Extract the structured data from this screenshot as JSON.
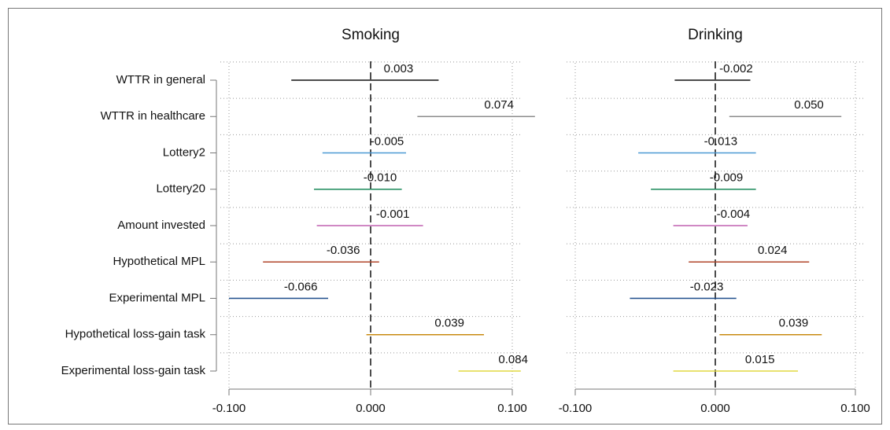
{
  "chart_data": {
    "type": "interval",
    "categories": [
      "WTTR in general",
      "WTTR in healthcare",
      "Lottery2",
      "Lottery20",
      "Amount invested",
      "Hypothetical MPL",
      "Experimental MPL",
      "Hypothetical loss-gain task",
      "Experimental loss-gain task"
    ],
    "colors": [
      "#111111",
      "#8c8c8c",
      "#4a9ad4",
      "#1a8a5a",
      "#c060b0",
      "#b0452a",
      "#1f4e8c",
      "#c88a10",
      "#e0d840"
    ],
    "xlim": [
      -0.1,
      0.1
    ],
    "xticks": [
      {
        "value": -0.1,
        "label": "-0.100"
      },
      {
        "value": 0,
        "label": "0.000"
      },
      {
        "value": 0.1,
        "label": "0.100"
      }
    ],
    "grid": true,
    "panels": [
      {
        "title": "Smoking",
        "values": [
          0.003,
          0.074,
          -0.005,
          -0.01,
          -0.001,
          -0.036,
          -0.066,
          0.039,
          0.084
        ],
        "value_labels": [
          "0.003",
          "0.074",
          "-0.005",
          "-0.010",
          "-0.001",
          "-0.036",
          "-0.066",
          "0.039",
          "0.084"
        ],
        "lower": [
          -0.056,
          0.033,
          -0.034,
          -0.04,
          -0.038,
          -0.076,
          -0.1,
          -0.003,
          0.062
        ],
        "upper": [
          0.048,
          0.116,
          0.025,
          0.022,
          0.037,
          0.006,
          -0.03,
          0.08,
          0.106
        ]
      },
      {
        "title": "Drinking",
        "values": [
          -0.002,
          0.05,
          -0.013,
          -0.009,
          -0.004,
          0.024,
          -0.023,
          0.039,
          0.015
        ],
        "value_labels": [
          "-0.002",
          "0.050",
          "-0.013",
          "-0.009",
          "-0.004",
          "0.024",
          "-0.023",
          "0.039",
          "0.015"
        ],
        "lower": [
          -0.029,
          0.01,
          -0.055,
          -0.046,
          -0.03,
          -0.019,
          -0.061,
          0.003,
          -0.03
        ],
        "upper": [
          0.025,
          0.09,
          0.029,
          0.029,
          0.023,
          0.067,
          0.015,
          0.076,
          0.059
        ]
      }
    ]
  }
}
